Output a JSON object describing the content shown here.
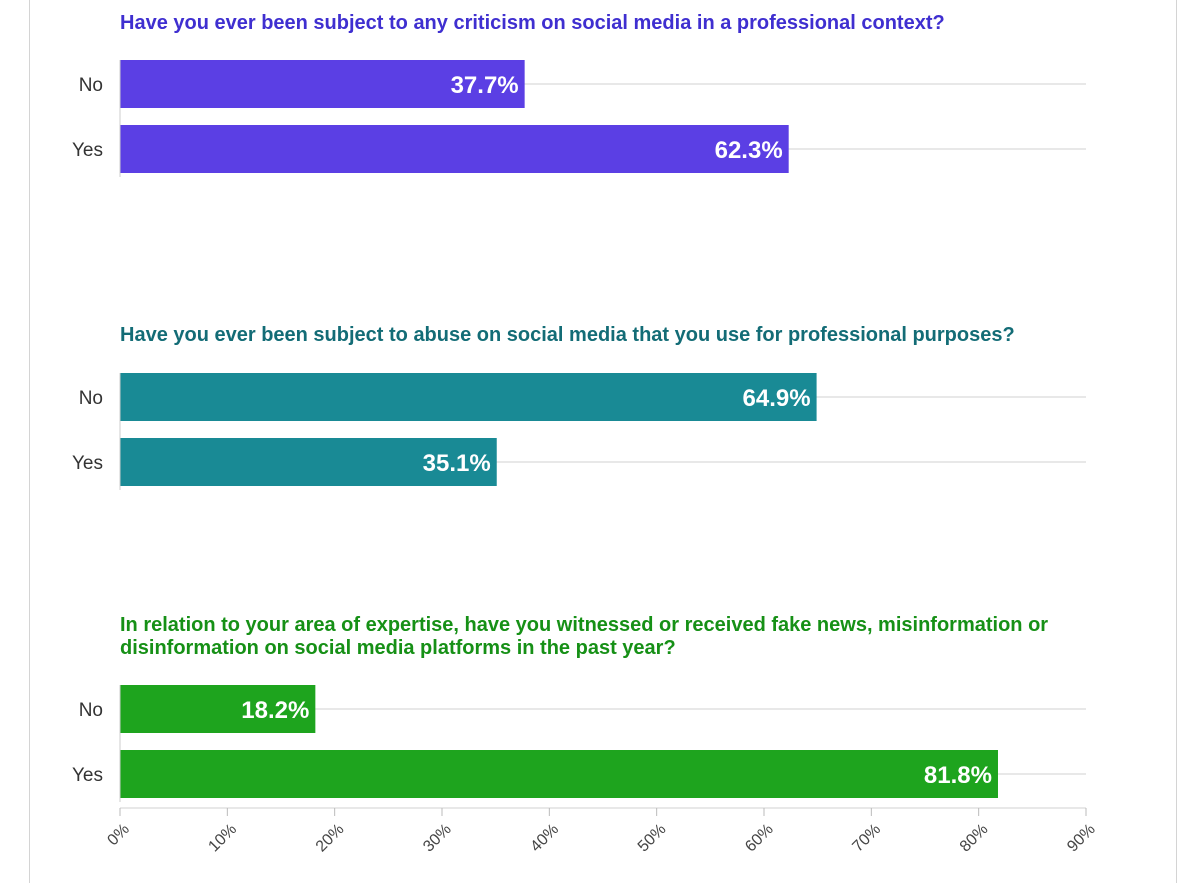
{
  "chart_data": {
    "type": "bar",
    "orientation": "horizontal",
    "xlim": [
      0,
      90
    ],
    "grid": true,
    "ticks": [
      "0%",
      "10%",
      "20%",
      "30%",
      "40%",
      "50%",
      "60%",
      "70%",
      "80%",
      "90%"
    ],
    "tick_values": [
      0,
      10,
      20,
      30,
      40,
      50,
      60,
      70,
      80,
      90
    ],
    "panels": [
      {
        "title_lines": [
          "Have you ever been subject to any criticism on social media in a professional context?"
        ],
        "color": "#5b3fe4",
        "title_color": "#3f2fd0",
        "categories": [
          "No",
          "Yes"
        ],
        "values": [
          37.7,
          62.3
        ],
        "labels": [
          "37.7%",
          "62.3%"
        ]
      },
      {
        "title_lines": [
          "Have you ever been subject to abuse on social media that you use for professional purposes?"
        ],
        "color": "#198a95",
        "title_color": "#136c76",
        "categories": [
          "No",
          "Yes"
        ],
        "values": [
          64.9,
          35.1
        ],
        "labels": [
          "64.9%",
          "35.1%"
        ]
      },
      {
        "title_lines": [
          "In relation to your area of expertise, have you witnessed or received fake news, misinformation or",
          "disinformation on social media platforms in the past year?"
        ],
        "color": "#1ea41e",
        "title_color": "#169016",
        "categories": [
          "No",
          "Yes"
        ],
        "values": [
          18.2,
          81.8
        ],
        "labels": [
          "18.2%",
          "81.8%"
        ]
      }
    ]
  }
}
